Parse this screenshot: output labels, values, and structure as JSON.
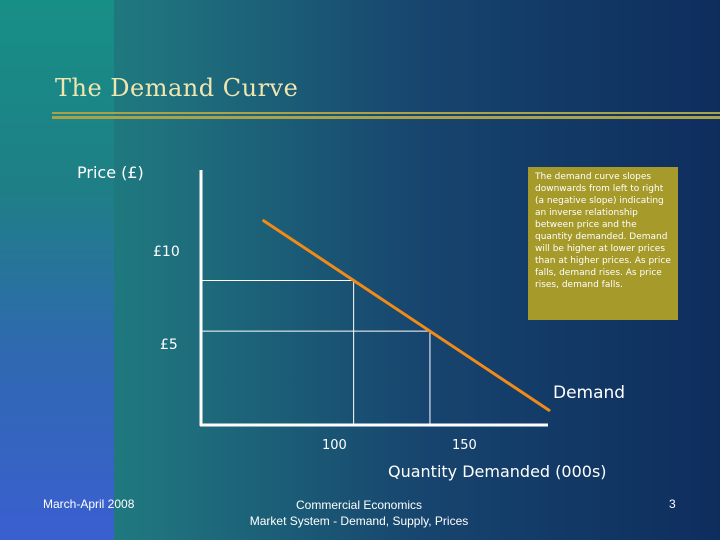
{
  "slide": {
    "title": "The Demand Curve",
    "note": "The demand curve slopes downwards from left to right (a negative slope) indicating an inverse relationship between price and the quantity demanded. Demand will be higher at lower prices than at higher prices. As price falls, demand rises. As price rises, demand falls.",
    "footer": {
      "date": "March-April 2008",
      "course": "Commercial Economics",
      "subtitle": "Market System - Demand, Supply, Prices",
      "page": "3"
    }
  },
  "colors": {
    "curve": "#f08a18",
    "axes": "#ffffff",
    "note_bg": "#a59a2a",
    "title": "#f0e6b0",
    "rule": "#a9a24a"
  },
  "chart_data": {
    "type": "line",
    "ylabel": "Price (£)",
    "xlabel": "Quantity Demanded (000s)",
    "x_ticks": [
      "100",
      "150"
    ],
    "y_ticks": [
      "£10",
      "£5"
    ],
    "series": [
      {
        "name": "Demand",
        "x": [
          100,
          150
        ],
        "y": [
          10,
          5
        ]
      }
    ],
    "xlim": [
      0,
      228
    ],
    "ylim": [
      -4.26,
      20.7
    ],
    "grid": false,
    "legend": "none"
  }
}
